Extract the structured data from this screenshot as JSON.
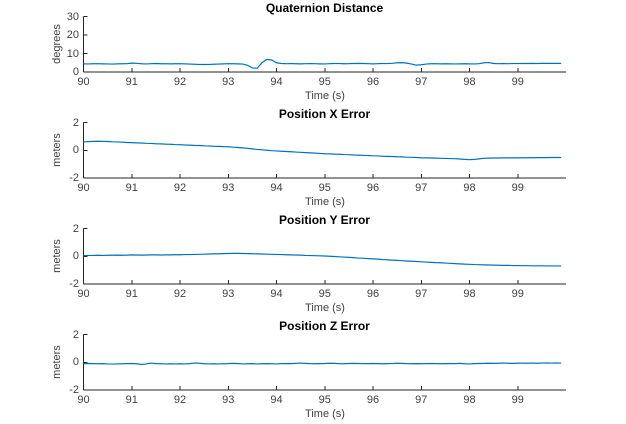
{
  "figure": {
    "background": "#ffffff"
  },
  "style": {
    "line_color": "#0072BD",
    "axis_color": "#262626",
    "tick_label_color": "#3f3f3f",
    "title_color": "#000000"
  },
  "chart_data": [
    {
      "type": "line",
      "title": "Quaternion Distance",
      "xlabel": "Time (s)",
      "ylabel": "degrees",
      "xlim": [
        90,
        100
      ],
      "ylim": [
        0,
        30
      ],
      "xticks": [
        90,
        91,
        92,
        93,
        94,
        95,
        96,
        97,
        98,
        99
      ],
      "yticks": [
        0,
        10,
        20,
        30
      ],
      "grid": false,
      "legend": null,
      "x_start": 90.0,
      "x_step": 0.1,
      "y": [
        4.4,
        4.35,
        4.45,
        4.5,
        4.4,
        4.35,
        4.3,
        4.4,
        4.45,
        4.5,
        4.8,
        4.7,
        4.45,
        4.35,
        4.5,
        4.6,
        4.45,
        4.5,
        4.4,
        4.45,
        4.5,
        4.4,
        4.3,
        4.2,
        4.1,
        4.05,
        4.1,
        4.2,
        4.3,
        4.4,
        4.5,
        4.45,
        4.4,
        4.3,
        3.6,
        2.2,
        2.0,
        5.0,
        6.8,
        6.5,
        5.0,
        4.6,
        4.5,
        4.55,
        4.45,
        4.4,
        4.5,
        4.55,
        4.5,
        4.4,
        4.35,
        4.5,
        4.6,
        4.55,
        4.45,
        4.5,
        4.6,
        4.65,
        4.6,
        4.5,
        4.4,
        4.5,
        4.6,
        4.55,
        4.7,
        5.0,
        5.05,
        4.8,
        4.3,
        3.7,
        3.9,
        4.3,
        4.45,
        4.5,
        4.4,
        4.45,
        4.4,
        4.35,
        4.4,
        4.45,
        4.4,
        4.35,
        4.5,
        5.0,
        5.1,
        4.6,
        4.5,
        4.55,
        4.5,
        4.55,
        4.55,
        4.6,
        4.6,
        4.65,
        4.6,
        4.65,
        4.7,
        4.65,
        4.7,
        4.65
      ]
    },
    {
      "type": "line",
      "title": "Position X Error",
      "xlabel": "Time (s)",
      "ylabel": "meters",
      "xlim": [
        90,
        100
      ],
      "ylim": [
        -2,
        2
      ],
      "xticks": [
        90,
        91,
        92,
        93,
        94,
        95,
        96,
        97,
        98,
        99
      ],
      "yticks": [
        -2,
        0,
        2
      ],
      "grid": false,
      "legend": null,
      "x_start": 90.0,
      "x_step": 0.1,
      "y": [
        0.6,
        0.62,
        0.64,
        0.65,
        0.64,
        0.63,
        0.61,
        0.6,
        0.58,
        0.56,
        0.55,
        0.53,
        0.52,
        0.5,
        0.49,
        0.47,
        0.46,
        0.44,
        0.43,
        0.41,
        0.4,
        0.38,
        0.37,
        0.35,
        0.34,
        0.32,
        0.31,
        0.29,
        0.28,
        0.26,
        0.25,
        0.22,
        0.2,
        0.17,
        0.14,
        0.1,
        0.06,
        0.03,
        0.0,
        -0.03,
        -0.05,
        -0.07,
        -0.09,
        -0.11,
        -0.13,
        -0.15,
        -0.17,
        -0.19,
        -0.21,
        -0.23,
        -0.25,
        -0.26,
        -0.28,
        -0.29,
        -0.31,
        -0.32,
        -0.34,
        -0.35,
        -0.37,
        -0.38,
        -0.4,
        -0.41,
        -0.43,
        -0.44,
        -0.45,
        -0.47,
        -0.48,
        -0.5,
        -0.51,
        -0.52,
        -0.54,
        -0.55,
        -0.56,
        -0.57,
        -0.58,
        -0.59,
        -0.6,
        -0.61,
        -0.63,
        -0.66,
        -0.68,
        -0.66,
        -0.62,
        -0.58,
        -0.57,
        -0.56,
        -0.56,
        -0.55,
        -0.55,
        -0.55,
        -0.55,
        -0.54,
        -0.54,
        -0.54,
        -0.53,
        -0.53,
        -0.53,
        -0.52,
        -0.52,
        -0.52
      ]
    },
    {
      "type": "line",
      "title": "Position Y Error",
      "xlabel": "Time (s)",
      "ylabel": "meters",
      "xlim": [
        90,
        100
      ],
      "ylim": [
        -2,
        2
      ],
      "xticks": [
        90,
        91,
        92,
        93,
        94,
        95,
        96,
        97,
        98,
        99
      ],
      "yticks": [
        -2,
        0,
        2
      ],
      "grid": false,
      "legend": null,
      "x_start": 90.0,
      "x_step": 0.1,
      "y": [
        0.05,
        0.06,
        0.06,
        0.07,
        0.06,
        0.07,
        0.07,
        0.08,
        0.07,
        0.08,
        0.1,
        0.09,
        0.08,
        0.09,
        0.1,
        0.1,
        0.09,
        0.1,
        0.1,
        0.11,
        0.11,
        0.12,
        0.12,
        0.13,
        0.14,
        0.15,
        0.16,
        0.17,
        0.18,
        0.19,
        0.2,
        0.21,
        0.21,
        0.2,
        0.19,
        0.18,
        0.17,
        0.16,
        0.15,
        0.14,
        0.13,
        0.12,
        0.11,
        0.1,
        0.09,
        0.08,
        0.06,
        0.05,
        0.04,
        0.03,
        0.02,
        0.0,
        -0.02,
        -0.04,
        -0.06,
        -0.08,
        -0.1,
        -0.13,
        -0.15,
        -0.17,
        -0.19,
        -0.21,
        -0.24,
        -0.26,
        -0.28,
        -0.3,
        -0.32,
        -0.34,
        -0.36,
        -0.38,
        -0.4,
        -0.42,
        -0.44,
        -0.46,
        -0.47,
        -0.49,
        -0.51,
        -0.53,
        -0.55,
        -0.57,
        -0.58,
        -0.6,
        -0.61,
        -0.62,
        -0.63,
        -0.64,
        -0.65,
        -0.66,
        -0.66,
        -0.67,
        -0.67,
        -0.68,
        -0.68,
        -0.69,
        -0.69,
        -0.69,
        -0.7,
        -0.7,
        -0.7,
        -0.7
      ]
    },
    {
      "type": "line",
      "title": "Position Z Error",
      "xlabel": "Time (s)",
      "ylabel": "meters",
      "xlim": [
        90,
        100
      ],
      "ylim": [
        -2,
        2
      ],
      "xticks": [
        90,
        91,
        92,
        93,
        94,
        95,
        96,
        97,
        98,
        99
      ],
      "yticks": [
        -2,
        0,
        2
      ],
      "grid": false,
      "legend": null,
      "x_start": 90.0,
      "x_step": 0.1,
      "y": [
        -0.1,
        -0.09,
        -0.1,
        -0.11,
        -0.1,
        -0.12,
        -0.13,
        -0.12,
        -0.11,
        -0.1,
        -0.09,
        -0.11,
        -0.16,
        -0.12,
        -0.06,
        -0.1,
        -0.11,
        -0.12,
        -0.11,
        -0.12,
        -0.11,
        -0.12,
        -0.1,
        -0.06,
        -0.07,
        -0.11,
        -0.12,
        -0.11,
        -0.12,
        -0.11,
        -0.1,
        -0.08,
        -0.09,
        -0.12,
        -0.11,
        -0.1,
        -0.12,
        -0.11,
        -0.1,
        -0.11,
        -0.12,
        -0.1,
        -0.09,
        -0.1,
        -0.08,
        -0.06,
        -0.08,
        -0.1,
        -0.11,
        -0.1,
        -0.09,
        -0.07,
        -0.08,
        -0.1,
        -0.11,
        -0.09,
        -0.08,
        -0.09,
        -0.1,
        -0.1,
        -0.09,
        -0.1,
        -0.11,
        -0.1,
        -0.09,
        -0.07,
        -0.08,
        -0.1,
        -0.11,
        -0.1,
        -0.11,
        -0.1,
        -0.09,
        -0.1,
        -0.11,
        -0.1,
        -0.09,
        -0.1,
        -0.08,
        -0.11,
        -0.12,
        -0.1,
        -0.09,
        -0.08,
        -0.07,
        -0.08,
        -0.07,
        -0.06,
        -0.07,
        -0.08,
        -0.07,
        -0.06,
        -0.07,
        -0.06,
        -0.07,
        -0.06,
        -0.05,
        -0.06,
        -0.05,
        -0.06
      ]
    }
  ]
}
